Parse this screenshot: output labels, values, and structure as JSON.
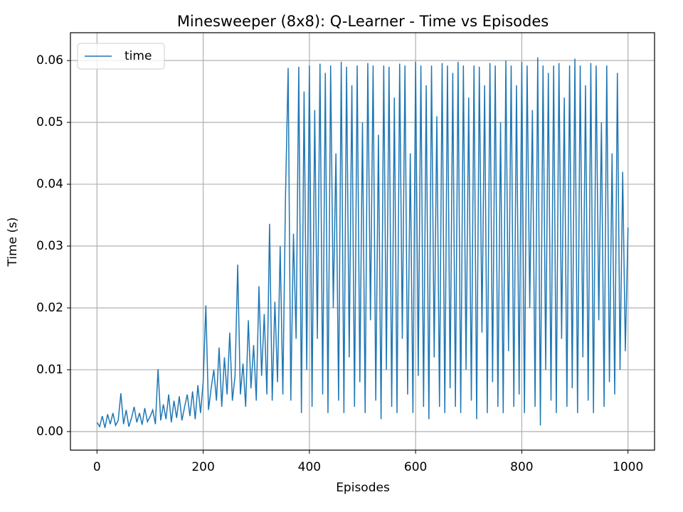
{
  "chart_data": {
    "type": "line",
    "title": "Minesweeper (8x8): Q-Learner - Time vs Episodes",
    "x_label": "Episodes",
    "y_label": "Time (s)",
    "xlim": [
      -50,
      1050
    ],
    "ylim": [
      -0.003,
      0.0645
    ],
    "xticks": [
      0,
      200,
      400,
      600,
      800,
      1000
    ],
    "yticks": [
      {
        "value": 0,
        "label": "0.00"
      },
      0.01,
      0.02,
      0.03,
      0.04,
      0.05,
      0.06
    ],
    "grid": true,
    "legend": "upper left",
    "x": [
      0,
      5,
      10,
      15,
      20,
      25,
      30,
      35,
      40,
      45,
      50,
      55,
      60,
      65,
      70,
      75,
      80,
      85,
      90,
      95,
      100,
      105,
      110,
      115,
      120,
      125,
      130,
      135,
      140,
      145,
      150,
      155,
      160,
      165,
      170,
      175,
      180,
      185,
      190,
      195,
      200,
      205,
      210,
      215,
      220,
      225,
      230,
      235,
      240,
      245,
      250,
      255,
      260,
      265,
      270,
      275,
      280,
      285,
      290,
      295,
      300,
      305,
      310,
      315,
      320,
      325,
      330,
      335,
      340,
      345,
      350,
      355,
      360,
      365,
      370,
      375,
      380,
      385,
      390,
      395,
      400,
      405,
      410,
      415,
      420,
      425,
      430,
      435,
      440,
      445,
      450,
      455,
      460,
      465,
      470,
      475,
      480,
      485,
      490,
      495,
      500,
      505,
      510,
      515,
      520,
      525,
      530,
      535,
      540,
      545,
      550,
      555,
      560,
      565,
      570,
      575,
      580,
      585,
      590,
      595,
      600,
      605,
      610,
      615,
      620,
      625,
      630,
      635,
      640,
      645,
      650,
      655,
      660,
      665,
      670,
      675,
      680,
      685,
      690,
      695,
      700,
      705,
      710,
      715,
      720,
      725,
      730,
      735,
      740,
      745,
      750,
      755,
      760,
      765,
      770,
      775,
      780,
      785,
      790,
      795,
      800,
      805,
      810,
      815,
      820,
      825,
      830,
      835,
      840,
      845,
      850,
      855,
      860,
      865,
      870,
      875,
      880,
      885,
      890,
      895,
      900,
      905,
      910,
      915,
      920,
      925,
      930,
      935,
      940,
      945,
      950,
      955,
      960,
      965,
      970,
      975,
      980,
      985,
      990,
      995,
      1000
    ],
    "series": [
      {
        "name": "time",
        "color": "#1f77b4",
        "values": [
          0.0015,
          0.0008,
          0.0025,
          0.0006,
          0.0028,
          0.0012,
          0.003,
          0.001,
          0.0018,
          0.0062,
          0.0012,
          0.0035,
          0.0008,
          0.0022,
          0.004,
          0.0015,
          0.003,
          0.0011,
          0.0038,
          0.0016,
          0.0024,
          0.0035,
          0.0012,
          0.0101,
          0.0018,
          0.0044,
          0.002,
          0.006,
          0.0015,
          0.005,
          0.0022,
          0.0057,
          0.0018,
          0.004,
          0.006,
          0.0025,
          0.0065,
          0.002,
          0.0075,
          0.003,
          0.008,
          0.0204,
          0.0035,
          0.007,
          0.01,
          0.005,
          0.0136,
          0.004,
          0.012,
          0.006,
          0.016,
          0.005,
          0.009,
          0.027,
          0.006,
          0.011,
          0.004,
          0.018,
          0.007,
          0.014,
          0.005,
          0.0235,
          0.009,
          0.019,
          0.006,
          0.0336,
          0.005,
          0.021,
          0.008,
          0.03,
          0.006,
          0.038,
          0.0588,
          0.005,
          0.032,
          0.015,
          0.059,
          0.003,
          0.055,
          0.01,
          0.0592,
          0.004,
          0.052,
          0.015,
          0.0595,
          0.006,
          0.058,
          0.003,
          0.0592,
          0.02,
          0.045,
          0.005,
          0.0598,
          0.003,
          0.059,
          0.012,
          0.056,
          0.004,
          0.0592,
          0.008,
          0.05,
          0.003,
          0.0596,
          0.018,
          0.0592,
          0.005,
          0.048,
          0.002,
          0.0592,
          0.01,
          0.059,
          0.004,
          0.054,
          0.003,
          0.0595,
          0.015,
          0.0592,
          0.006,
          0.045,
          0.003,
          0.0598,
          0.009,
          0.0592,
          0.004,
          0.056,
          0.002,
          0.0592,
          0.012,
          0.051,
          0.004,
          0.0596,
          0.003,
          0.0592,
          0.007,
          0.058,
          0.004,
          0.0598,
          0.003,
          0.0592,
          0.01,
          0.054,
          0.005,
          0.0592,
          0.002,
          0.059,
          0.016,
          0.056,
          0.003,
          0.0596,
          0.008,
          0.0592,
          0.004,
          0.05,
          0.003,
          0.06,
          0.013,
          0.0592,
          0.004,
          0.056,
          0.006,
          0.0598,
          0.003,
          0.0592,
          0.02,
          0.052,
          0.004,
          0.0605,
          0.001,
          0.0592,
          0.01,
          0.058,
          0.005,
          0.0592,
          0.003,
          0.0596,
          0.015,
          0.054,
          0.004,
          0.0592,
          0.007,
          0.0603,
          0.003,
          0.0592,
          0.012,
          0.056,
          0.005,
          0.0596,
          0.003,
          0.0592,
          0.018,
          0.05,
          0.004,
          0.0592,
          0.008,
          0.045,
          0.006,
          0.058,
          0.01,
          0.042,
          0.013,
          0.033
        ]
      }
    ]
  }
}
